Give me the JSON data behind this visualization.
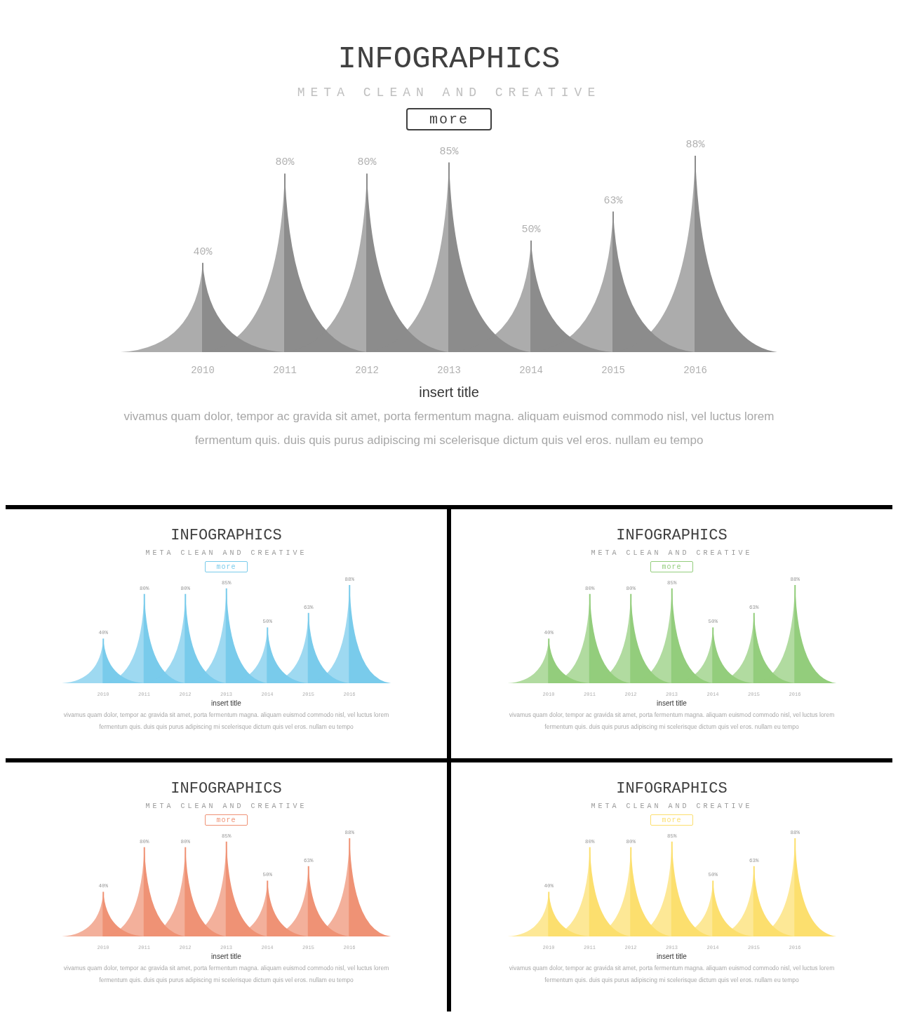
{
  "chart_data": [
    {
      "type": "bar",
      "title": "INFOGRAPHICS",
      "subtitle": "META CLEAN AND CREATIVE",
      "categories": [
        "2010",
        "2011",
        "2012",
        "2013",
        "2014",
        "2015",
        "2016"
      ],
      "values": [
        40,
        80,
        80,
        85,
        50,
        63,
        88
      ],
      "value_labels": [
        "40%",
        "80%",
        "80%",
        "85%",
        "50%",
        "63%",
        "88%"
      ],
      "color": "#8c8c8c",
      "annotations": [
        "more",
        "insert title",
        "vivamus quam dolor, tempor ac gravida sit amet, porta fermentum magna. aliquam euismod commodo nisl, vel luctus lorem fermentum quis. duis quis purus adipiscing mi scelerisque dictum quis vel eros. nullam eu tempo"
      ]
    },
    {
      "type": "bar",
      "title": "INFOGRAPHICS",
      "subtitle": "META CLEAN AND CREATIVE",
      "categories": [
        "2010",
        "2011",
        "2012",
        "2013",
        "2014",
        "2015",
        "2016"
      ],
      "values": [
        40,
        80,
        80,
        85,
        50,
        63,
        88
      ],
      "value_labels": [
        "40%",
        "80%",
        "80%",
        "85%",
        "50%",
        "63%",
        "88%"
      ],
      "color": "#79cbeb",
      "annotations": [
        "more",
        "insert title",
        "vivamus quam dolor, tempor ac gravida sit amet, porta fermentum magna. aliquam euismod commodo nisl, vel luctus lorem fermentum quis. duis quis purus adipiscing mi scelerisque dictum quis vel eros. nullam eu tempo"
      ]
    },
    {
      "type": "bar",
      "title": "INFOGRAPHICS",
      "subtitle": "META CLEAN AND CREATIVE",
      "categories": [
        "2010",
        "2011",
        "2012",
        "2013",
        "2014",
        "2015",
        "2016"
      ],
      "values": [
        40,
        80,
        80,
        85,
        50,
        63,
        88
      ],
      "value_labels": [
        "40%",
        "80%",
        "80%",
        "85%",
        "50%",
        "63%",
        "88%"
      ],
      "color": "#93cd7c",
      "annotations": [
        "more",
        "insert title",
        "vivamus quam dolor, tempor ac gravida sit amet, porta fermentum magna. aliquam euismod commodo nisl, vel luctus lorem fermentum quis. duis quis purus adipiscing mi scelerisque dictum quis vel eros. nullam eu tempo"
      ]
    },
    {
      "type": "bar",
      "title": "INFOGRAPHICS",
      "subtitle": "META CLEAN AND CREATIVE",
      "categories": [
        "2010",
        "2011",
        "2012",
        "2013",
        "2014",
        "2015",
        "2016"
      ],
      "values": [
        40,
        80,
        80,
        85,
        50,
        63,
        88
      ],
      "value_labels": [
        "40%",
        "80%",
        "80%",
        "85%",
        "50%",
        "63%",
        "88%"
      ],
      "color": "#ef9275",
      "annotations": [
        "more",
        "insert title",
        "vivamus quam dolor, tempor ac gravida sit amet, porta fermentum magna. aliquam euismod commodo nisl, vel luctus lorem fermentum quis. duis quis purus adipiscing mi scelerisque dictum quis vel eros. nullam eu tempo"
      ]
    },
    {
      "type": "bar",
      "title": "INFOGRAPHICS",
      "subtitle": "META CLEAN AND CREATIVE",
      "categories": [
        "2010",
        "2011",
        "2012",
        "2013",
        "2014",
        "2015",
        "2016"
      ],
      "values": [
        40,
        80,
        80,
        85,
        50,
        63,
        88
      ],
      "value_labels": [
        "40%",
        "80%",
        "80%",
        "85%",
        "50%",
        "63%",
        "88%"
      ],
      "color": "#fcdf6e",
      "annotations": [
        "more",
        "insert title",
        "vivamus quam dolor, tempor ac gravida sit amet, porta fermentum magna. aliquam euismod commodo nisl, vel luctus lorem fermentum quis. duis quis purus adipiscing mi scelerisque dictum quis vel eros. nullam eu tempo"
      ]
    }
  ]
}
